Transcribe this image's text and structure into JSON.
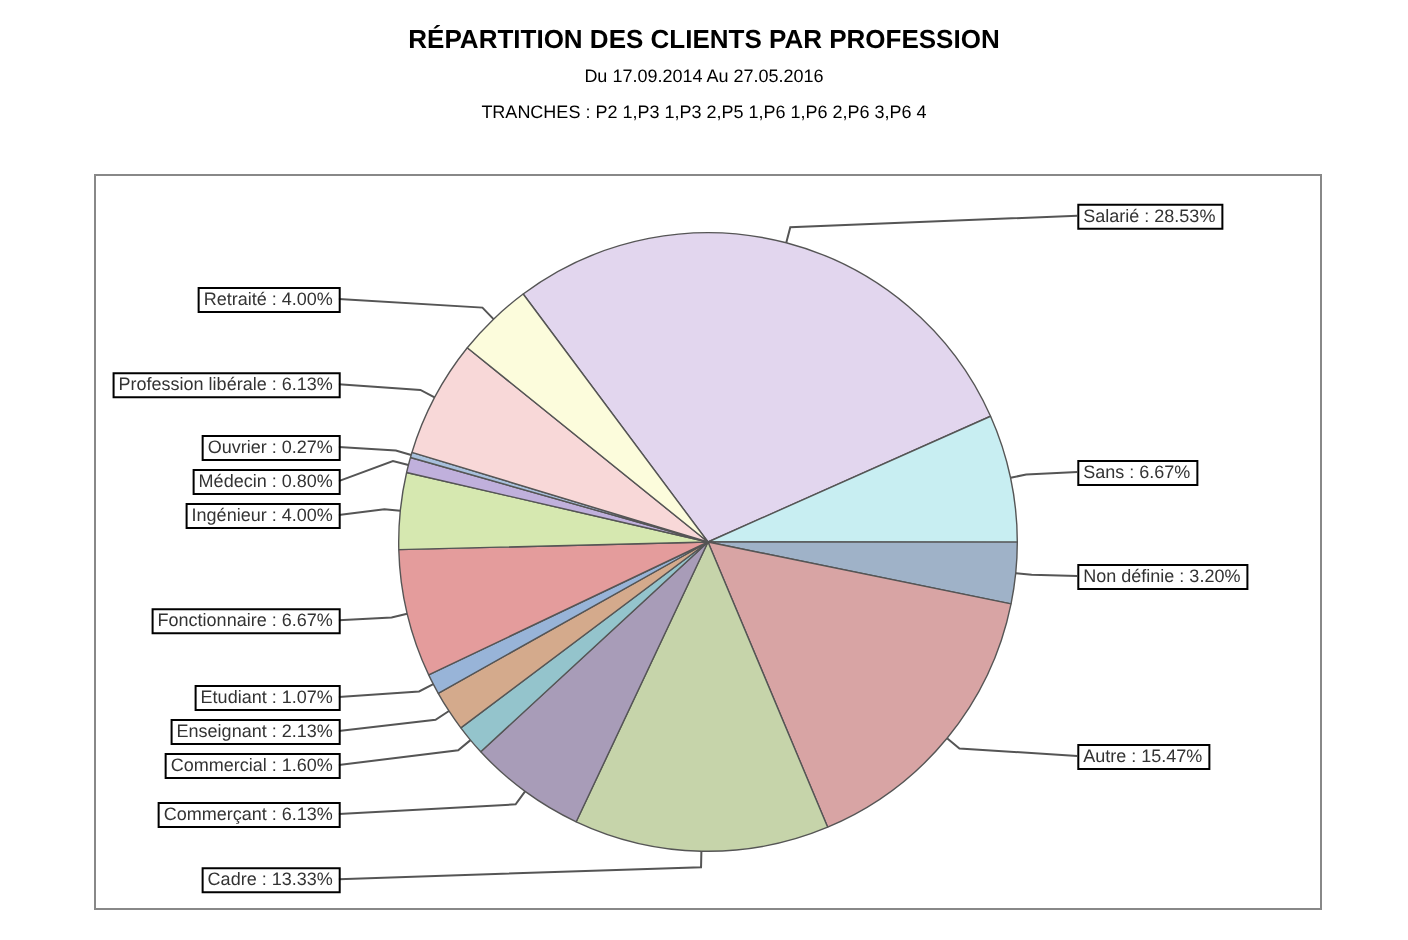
{
  "chart_data": {
    "type": "pie",
    "title": "RÉPARTITION DES CLIENTS PAR PROFESSION",
    "subtitle": "Du 17.09.2014 Au 27.05.2016",
    "annotations": [
      "TRANCHES : P2 1,P3 1,P3 2,P5 1,P6 1,P6 2,P6 3,P6 4"
    ],
    "categories": [
      "Salarié",
      "Sans",
      "Non définie",
      "Autre",
      "Cadre",
      "Commerçant",
      "Commercial",
      "Enseignant",
      "Etudiant",
      "Fonctionnaire",
      "Ingénieur",
      "Médecin",
      "Ouvrier",
      "Profession libérale",
      "Retraité"
    ],
    "values": [
      28.53,
      6.67,
      3.2,
      15.47,
      13.33,
      6.13,
      1.6,
      2.13,
      1.07,
      6.67,
      4.0,
      0.8,
      0.27,
      6.13,
      4.0
    ],
    "value_labels": [
      "28.53%",
      "6.67%",
      "3.20%",
      "15.47%",
      "13.33%",
      "6.13%",
      "1.60%",
      "2.13%",
      "1.07%",
      "6.67%",
      "4.00%",
      "0.80%",
      "0.27%",
      "6.13%",
      "4.00%"
    ],
    "colors": [
      "#e2d6ee",
      "#c8eef2",
      "#9fb2c8",
      "#d8a4a4",
      "#c6d4aa",
      "#a89cb8",
      "#94c4cc",
      "#d4aa8c",
      "#98b4d8",
      "#e49c9c",
      "#d6e8b0",
      "#c0b0dc",
      "#a8c0dc",
      "#f8d8d8",
      "#fcfcdc"
    ],
    "legend": false
  }
}
